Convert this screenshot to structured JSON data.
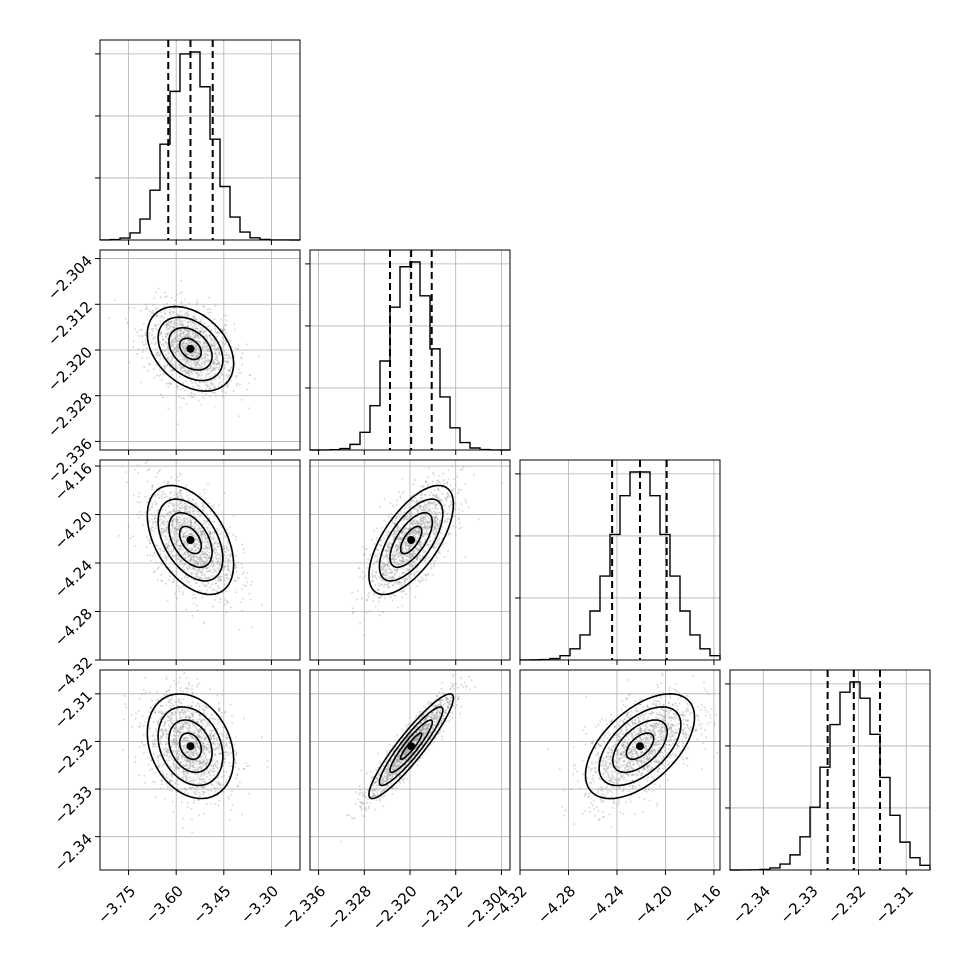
{
  "chart_data": {
    "type": "corner",
    "params": [
      {
        "median": -3.555,
        "std": 0.068,
        "range": [
          -3.84,
          -3.21
        ],
        "ticks": [
          -3.75,
          -3.6,
          -3.45,
          -3.3
        ],
        "tick_labels": [
          "−3.75",
          "−3.60",
          "−3.45",
          "−3.30"
        ],
        "quantiles": [
          -3.625,
          -3.555,
          -3.485
        ]
      },
      {
        "median": -2.3198,
        "std": 0.0037,
        "range": [
          -2.3375,
          -2.3025
        ],
        "ticks": [
          -2.336,
          -2.328,
          -2.32,
          -2.312,
          -2.304
        ],
        "tick_labels": [
          "−2.336",
          "−2.328",
          "−2.320",
          "−2.312",
          "−2.304"
        ],
        "quantiles": [
          -2.3235,
          -2.3198,
          -2.3162
        ]
      },
      {
        "median": -4.221,
        "std": 0.0225,
        "range": [
          -4.32,
          -4.155
        ],
        "ticks": [
          -4.32,
          -4.28,
          -4.24,
          -4.2,
          -4.16
        ],
        "tick_labels": [
          "−4.32",
          "−4.28",
          "−4.24",
          "−4.20",
          "−4.16"
        ],
        "quantiles": [
          -4.244,
          -4.221,
          -4.199
        ]
      },
      {
        "median": -2.321,
        "std": 0.0055,
        "range": [
          -2.347,
          -2.305
        ],
        "ticks": [
          -2.34,
          -2.33,
          -2.32,
          -2.31
        ],
        "tick_labels": [
          "−2.34",
          "−2.33",
          "−2.32",
          "−2.31"
        ],
        "quantiles": [
          -2.3265,
          -2.321,
          -2.3155
        ]
      }
    ],
    "correlations": [
      [
        0,
        1,
        -0.35
      ],
      [
        0,
        2,
        -0.45
      ],
      [
        0,
        3,
        -0.25
      ],
      [
        1,
        2,
        0.65
      ],
      [
        1,
        3,
        0.92
      ],
      [
        2,
        3,
        0.55
      ]
    ],
    "grid": true
  }
}
